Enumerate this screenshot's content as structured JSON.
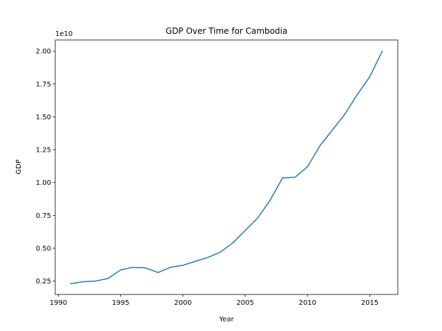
{
  "chart_data": {
    "type": "line",
    "title": "GDP Over Time for Cambodia",
    "xlabel": "Year",
    "ylabel": "GDP",
    "y_offset_label": "1e10",
    "y_scale_factor": 10000000000,
    "xlim": [
      1989.75,
      2017.25
    ],
    "ylim": [
      0.148,
      2.085
    ],
    "x_ticks": [
      1990,
      1995,
      2000,
      2005,
      2010,
      2015
    ],
    "x_tick_labels": [
      "1990",
      "1995",
      "2000",
      "2005",
      "2010",
      "2015"
    ],
    "y_ticks": [
      0.25,
      0.5,
      0.75,
      1.0,
      1.25,
      1.5,
      1.75,
      2.0
    ],
    "y_tick_labels": [
      "0.25",
      "0.50",
      "0.75",
      "1.00",
      "1.25",
      "1.50",
      "1.75",
      "2.00"
    ],
    "grid": false,
    "legend": "none",
    "series": [
      {
        "color": "#1f77b4",
        "x": [
          1991,
          1992,
          1993,
          1994,
          1995,
          1996,
          1997,
          1998,
          1999,
          2000,
          2001,
          2002,
          2003,
          2004,
          2005,
          2006,
          2007,
          2008,
          2009,
          2010,
          2011,
          2012,
          2013,
          2014,
          2015,
          2016
        ],
        "y": [
          0.23,
          0.245,
          0.25,
          0.27,
          0.335,
          0.355,
          0.35,
          0.315,
          0.355,
          0.37,
          0.4,
          0.43,
          0.47,
          0.54,
          0.635,
          0.73,
          0.865,
          1.035,
          1.04,
          1.12,
          1.28,
          1.4,
          1.52,
          1.67,
          1.805,
          2.0
        ]
      }
    ]
  }
}
